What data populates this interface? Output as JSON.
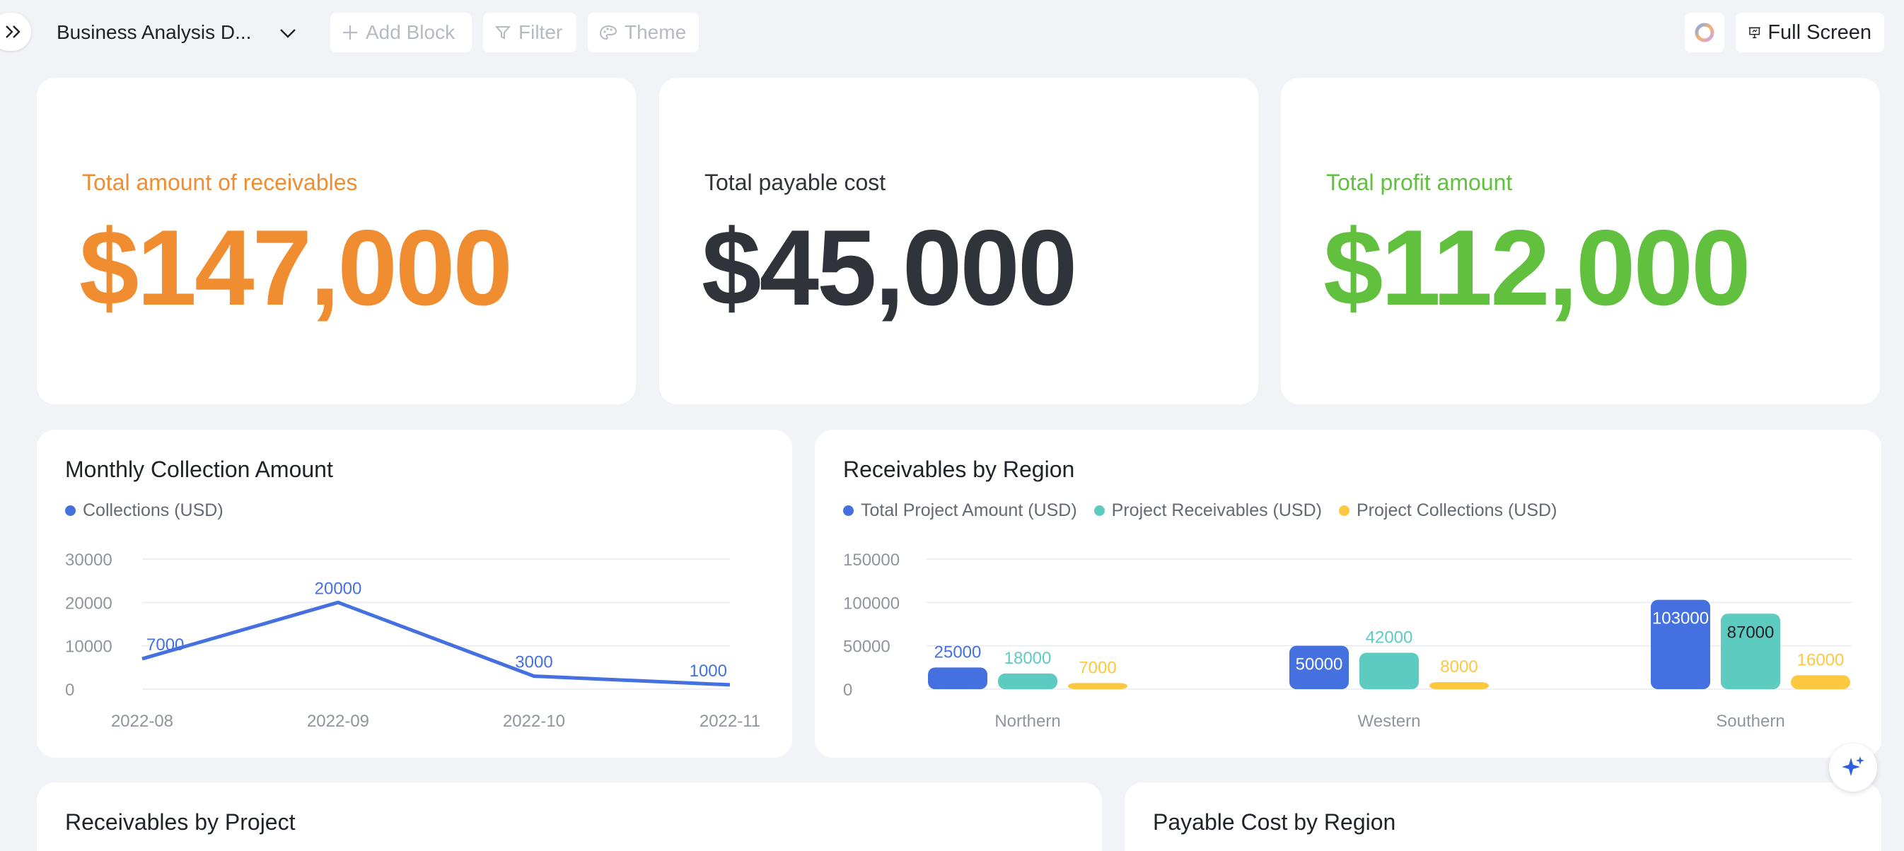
{
  "toolbar": {
    "title": "Business Analysis D...",
    "add_block": "Add Block",
    "filter": "Filter",
    "theme": "Theme",
    "full_screen": "Full Screen"
  },
  "colors": {
    "receivables": "#f18d31",
    "payable": "#30343a",
    "profit": "#61c13f",
    "blue": "#4470e0",
    "teal": "#5ecbc0",
    "yellow": "#fbc840"
  },
  "kpis": [
    {
      "label": "Total amount of receivables",
      "value": "$147,000"
    },
    {
      "label": "Total payable cost",
      "value": "$45,000"
    },
    {
      "label": "Total profit amount",
      "value": "$112,000"
    }
  ],
  "monthly_chart": {
    "title": "Monthly Collection Amount",
    "legend": [
      "Collections (USD)"
    ]
  },
  "region_chart": {
    "title": "Receivables by Region",
    "legend": [
      "Total Project Amount (USD)",
      "Project Receivables (USD)",
      "Project Collections (USD)"
    ]
  },
  "bottom_cards": {
    "project_title": "Receivables by Project",
    "payable_title": "Payable Cost by Region"
  },
  "chart_data": [
    {
      "type": "line",
      "title": "Monthly Collection Amount",
      "categories": [
        "2022-08",
        "2022-09",
        "2022-10",
        "2022-11"
      ],
      "series": [
        {
          "name": "Collections (USD)",
          "values": [
            7000,
            20000,
            3000,
            1000
          ]
        }
      ],
      "yticks": [
        0,
        10000,
        20000,
        30000
      ],
      "ylim": [
        0,
        30000
      ],
      "grid": true,
      "legend_position": "top-left"
    },
    {
      "type": "bar",
      "title": "Receivables by Region",
      "categories": [
        "Northern",
        "Western",
        "Southern"
      ],
      "series": [
        {
          "name": "Total Project Amount (USD)",
          "values": [
            25000,
            50000,
            103000
          ]
        },
        {
          "name": "Project Receivables (USD)",
          "values": [
            18000,
            42000,
            87000
          ]
        },
        {
          "name": "Project Collections (USD)",
          "values": [
            7000,
            8000,
            16000
          ]
        }
      ],
      "yticks": [
        0,
        50000,
        100000,
        150000
      ],
      "ylim": [
        0,
        150000
      ],
      "grid": true,
      "legend_position": "top-left"
    }
  ]
}
